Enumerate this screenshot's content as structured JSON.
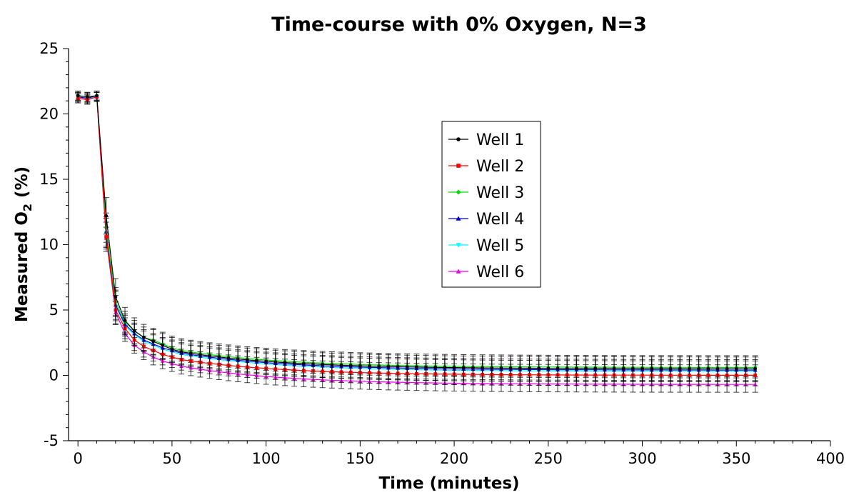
{
  "chart_data": {
    "type": "line",
    "title": "Time-course with 0% Oxygen, N=3",
    "xlabel": "Time (minutes)",
    "ylabel_main": "Measured O",
    "ylabel_sub": "2",
    "ylabel_tail": " (%)",
    "xlim": [
      -5,
      400
    ],
    "ylim": [
      -5,
      25
    ],
    "x_ticks": [
      0,
      50,
      100,
      150,
      200,
      250,
      300,
      350,
      400
    ],
    "y_ticks": [
      -5,
      0,
      5,
      10,
      15,
      20,
      25
    ],
    "legend_position": "upper-center-right",
    "grid": false,
    "x_start": 0,
    "x_step": 5,
    "x_end": 360,
    "series": [
      {
        "name": "Well 1",
        "color": "#000000",
        "marker": "circle",
        "values": [
          21.4,
          21.3,
          21.4,
          12.2,
          6.0,
          4.2,
          3.4,
          2.9,
          2.6,
          2.3,
          2.0,
          1.8
        ],
        "tail_end": 0.5,
        "err": 1.0
      },
      {
        "name": "Well 2",
        "color": "#ff0000",
        "marker": "square",
        "values": [
          21.2,
          21.1,
          21.3,
          10.6,
          5.0,
          3.6,
          2.7,
          2.2,
          1.9,
          1.6,
          1.4,
          1.2
        ],
        "tail_end": 0.0,
        "err": 0.8
      },
      {
        "name": "Well 3",
        "color": "#00dd00",
        "marker": "diamond",
        "values": [
          21.4,
          21.3,
          21.4,
          11.3,
          5.6,
          4.1,
          3.4,
          2.9,
          2.7,
          2.4,
          2.1,
          1.9
        ],
        "tail_end": 0.6,
        "err": 0.8
      },
      {
        "name": "Well 4",
        "color": "#0000dd",
        "marker": "triangle-up",
        "values": [
          21.3,
          21.2,
          21.4,
          11.0,
          5.4,
          3.9,
          3.2,
          2.7,
          2.4,
          2.1,
          1.9,
          1.7
        ],
        "tail_end": 0.4,
        "err": 0.8
      },
      {
        "name": "Well 5",
        "color": "#00ffff",
        "marker": "triangle-down",
        "values": [
          21.3,
          21.2,
          21.3,
          10.9,
          5.3,
          3.8,
          3.1,
          2.6,
          2.3,
          2.0,
          1.8,
          1.6
        ],
        "tail_end": 0.3,
        "err": 0.8
      },
      {
        "name": "Well 6",
        "color": "#ee00ee",
        "marker": "triangle-up",
        "values": [
          21.2,
          21.1,
          21.3,
          10.5,
          4.8,
          3.2,
          2.3,
          1.8,
          1.4,
          1.1,
          0.9,
          0.7
        ],
        "tail_end": -0.7,
        "err": 0.6
      }
    ]
  }
}
